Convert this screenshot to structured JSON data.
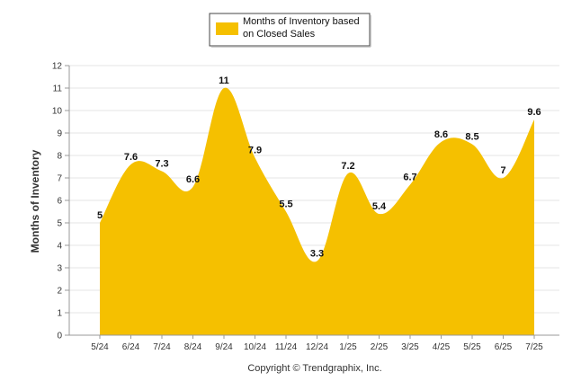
{
  "chart_data": {
    "type": "area",
    "categories": [
      "5/24",
      "6/24",
      "7/24",
      "8/24",
      "9/24",
      "10/24",
      "11/24",
      "12/24",
      "1/25",
      "2/25",
      "3/25",
      "4/25",
      "5/25",
      "6/25",
      "7/25"
    ],
    "series": [
      {
        "name": "Months of Inventory based on Closed Sales",
        "values": [
          5,
          7.6,
          7.3,
          6.6,
          11,
          7.9,
          5.5,
          3.3,
          7.2,
          5.4,
          6.7,
          8.6,
          8.5,
          7,
          9.6
        ],
        "color": "#f5c000"
      }
    ],
    "data_labels": [
      "5",
      "7.6",
      "7.3",
      "6.6",
      "11",
      "7.9",
      "5.5",
      "3.3",
      "7.2",
      "5.4",
      "6.7",
      "8.6",
      "8.5",
      "7",
      "9.6"
    ],
    "ylabel": "Months of Inventory",
    "xlabel": "",
    "ylim": [
      0,
      12
    ],
    "yticks": [
      "0",
      "1",
      "2",
      "3",
      "4",
      "5",
      "6",
      "7",
      "8",
      "9",
      "10",
      "11",
      "12"
    ],
    "grid": true,
    "legend_position": "top-center",
    "legend_lines": [
      "Months of Inventory based",
      "on Closed Sales"
    ],
    "copyright": "Copyright © Trendgraphix, Inc."
  }
}
